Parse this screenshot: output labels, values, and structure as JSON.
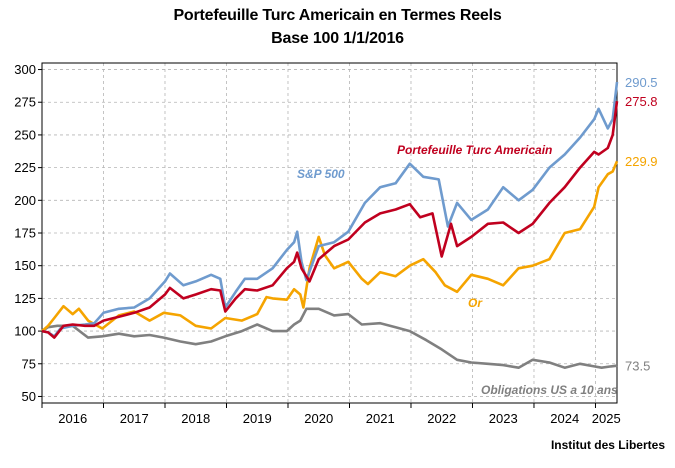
{
  "titles": {
    "line1": "Portefeuille Turc Americain en Termes Reels",
    "line2": "Base 100 1/1/2016"
  },
  "credit": "Institut des Libertes",
  "chart_data": {
    "type": "line",
    "title": "Portefeuille Turc Americain en Termes Reels",
    "subtitle": "Base 100 1/1/2016",
    "xlabel": "",
    "ylabel": "",
    "ylim": [
      45,
      305
    ],
    "xlim": [
      2016.0,
      2025.35
    ],
    "yticks": [
      50,
      75,
      100,
      125,
      150,
      175,
      200,
      225,
      250,
      275,
      300
    ],
    "xtick_labels": [
      "2016",
      "2017",
      "2018",
      "2019",
      "2020",
      "2021",
      "2022",
      "2023",
      "2024",
      "2025"
    ],
    "grid": true,
    "legend": "none (labels on chart)",
    "series": [
      {
        "name": "S&P 500",
        "color": "#6f9bce",
        "end_label": "290.5",
        "x": [
          2016.0,
          2016.1,
          2016.2,
          2016.3,
          2016.5,
          2016.7,
          2016.85,
          2017.0,
          2017.25,
          2017.5,
          2017.75,
          2018.0,
          2018.08,
          2018.3,
          2018.5,
          2018.75,
          2018.9,
          2018.98,
          2019.15,
          2019.3,
          2019.5,
          2019.75,
          2019.98,
          2020.1,
          2020.15,
          2020.22,
          2020.3,
          2020.5,
          2020.75,
          2020.98,
          2021.25,
          2021.5,
          2021.75,
          2021.98,
          2022.2,
          2022.45,
          2022.6,
          2022.75,
          2022.98,
          2023.25,
          2023.5,
          2023.75,
          2023.98,
          2024.25,
          2024.5,
          2024.75,
          2024.98,
          2025.05,
          2025.2,
          2025.28,
          2025.35
        ],
        "values": [
          100,
          99,
          96,
          102,
          104,
          105,
          106,
          114,
          117,
          118,
          125,
          138,
          144,
          135,
          138,
          143,
          140,
          118,
          130,
          140,
          140,
          148,
          162,
          168,
          176,
          153,
          139,
          165,
          168,
          176,
          198,
          210,
          213,
          228,
          218,
          216,
          180,
          198,
          185,
          193,
          210,
          200,
          208,
          225,
          235,
          248,
          262,
          270,
          255,
          262,
          290.5
        ]
      },
      {
        "name": "Portefeuille Turc Americain",
        "color": "#c0001f",
        "end_label": "275.8",
        "x": [
          2016.0,
          2016.1,
          2016.2,
          2016.35,
          2016.5,
          2016.7,
          2016.85,
          2017.0,
          2017.25,
          2017.5,
          2017.75,
          2018.0,
          2018.08,
          2018.3,
          2018.5,
          2018.75,
          2018.9,
          2018.98,
          2019.15,
          2019.3,
          2019.5,
          2019.75,
          2019.98,
          2020.1,
          2020.15,
          2020.22,
          2020.35,
          2020.5,
          2020.75,
          2020.98,
          2021.25,
          2021.5,
          2021.75,
          2021.98,
          2022.15,
          2022.35,
          2022.5,
          2022.65,
          2022.75,
          2022.98,
          2023.25,
          2023.5,
          2023.75,
          2023.98,
          2024.25,
          2024.5,
          2024.75,
          2024.98,
          2025.05,
          2025.2,
          2025.28,
          2025.35
        ],
        "values": [
          100,
          99,
          95,
          104,
          105,
          104,
          104,
          108,
          111,
          114,
          118,
          128,
          133,
          125,
          128,
          132,
          131,
          115,
          125,
          132,
          131,
          135,
          148,
          153,
          160,
          148,
          138,
          155,
          165,
          170,
          183,
          190,
          193,
          197,
          187,
          190,
          157,
          182,
          165,
          172,
          182,
          183,
          175,
          182,
          198,
          210,
          225,
          237,
          235,
          240,
          250,
          275.8
        ]
      },
      {
        "name": "Or",
        "color": "#f5a400",
        "end_label": "229.9",
        "x": [
          2016.0,
          2016.1,
          2016.2,
          2016.35,
          2016.5,
          2016.6,
          2016.75,
          2016.98,
          2017.25,
          2017.5,
          2017.75,
          2017.98,
          2018.25,
          2018.5,
          2018.75,
          2018.98,
          2019.25,
          2019.5,
          2019.65,
          2019.75,
          2019.98,
          2020.1,
          2020.2,
          2020.25,
          2020.35,
          2020.5,
          2020.6,
          2020.75,
          2020.98,
          2021.2,
          2021.3,
          2021.5,
          2021.75,
          2021.98,
          2022.2,
          2022.4,
          2022.55,
          2022.75,
          2022.98,
          2023.25,
          2023.5,
          2023.75,
          2023.98,
          2024.25,
          2024.5,
          2024.75,
          2024.98,
          2025.05,
          2025.2,
          2025.28,
          2025.35
        ],
        "values": [
          100,
          104,
          110,
          119,
          113,
          117,
          108,
          102,
          112,
          115,
          108,
          114,
          112,
          104,
          102,
          110,
          108,
          113,
          126,
          125,
          124,
          132,
          128,
          118,
          148,
          172,
          158,
          148,
          153,
          140,
          136,
          145,
          142,
          150,
          155,
          145,
          135,
          130,
          143,
          140,
          135,
          148,
          150,
          155,
          175,
          178,
          195,
          210,
          220,
          222,
          229.9
        ]
      },
      {
        "name": "Obligations US a 10 ans",
        "color": "#808080",
        "end_label": "73.5",
        "x": [
          2016.0,
          2016.1,
          2016.25,
          2016.5,
          2016.75,
          2016.98,
          2017.25,
          2017.5,
          2017.75,
          2017.98,
          2018.25,
          2018.5,
          2018.75,
          2018.98,
          2019.25,
          2019.5,
          2019.75,
          2019.98,
          2020.1,
          2020.2,
          2020.3,
          2020.5,
          2020.75,
          2020.98,
          2021.2,
          2021.5,
          2021.75,
          2021.98,
          2022.25,
          2022.5,
          2022.75,
          2022.98,
          2023.25,
          2023.5,
          2023.75,
          2023.98,
          2024.25,
          2024.5,
          2024.75,
          2024.98,
          2025.1,
          2025.25,
          2025.35
        ],
        "values": [
          100,
          103,
          104,
          104,
          95,
          96,
          98,
          96,
          97,
          95,
          92,
          90,
          92,
          96,
          100,
          105,
          100,
          100,
          105,
          108,
          117,
          117,
          112,
          113,
          105,
          106,
          103,
          100,
          93,
          86,
          78,
          76,
          75,
          74,
          72,
          78,
          76,
          72,
          75,
          73,
          72,
          73,
          73.5
        ]
      }
    ],
    "annotations": [
      {
        "text": "S&P 500",
        "series": "S&P 500"
      },
      {
        "text": "Portefeuille Turc Americain",
        "series": "Portefeuille Turc Americain"
      },
      {
        "text": "Or",
        "series": "Or"
      },
      {
        "text": "Obligations US a 10 ans",
        "series": "Obligations US a 10 ans"
      }
    ]
  }
}
